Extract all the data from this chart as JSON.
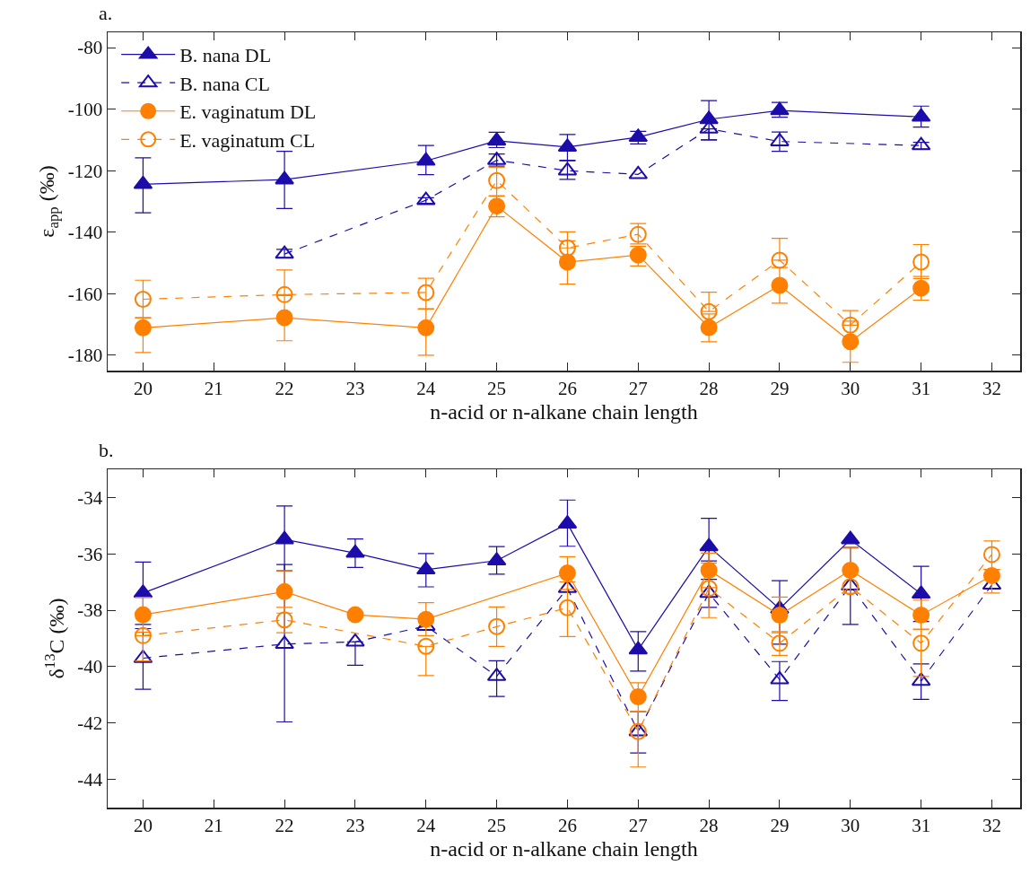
{
  "chart_data": [
    {
      "type": "line",
      "title": "a.",
      "xlabel": "n-acid or n-alkane chain length",
      "ylabel": "ε$_{app}$ (‰)",
      "xlim": [
        19.5,
        32.4
      ],
      "xticks": [
        20,
        21,
        22,
        23,
        24,
        25,
        26,
        27,
        28,
        29,
        30,
        31,
        32
      ],
      "ylim": [
        -185,
        -75
      ],
      "yticks": [
        -80,
        -100,
        -120,
        -140,
        -160,
        -180
      ],
      "grid": false,
      "legend": "top left",
      "series": [
        {
          "name": "B. nana DL",
          "color": "#1c0ca9",
          "marker": "triangle",
          "line_style": "solid",
          "x": [
            20,
            22,
            24,
            25,
            26,
            27,
            28,
            29,
            31
          ],
          "values": [
            -124.4,
            -122.9,
            -116.8,
            -110.3,
            -112.3,
            -109.1,
            -103.3,
            -100.4,
            -102.5
          ],
          "errors": [
            [
              -133.7,
              -115.8
            ],
            [
              -132.3,
              -113.7
            ],
            [
              -121.3,
              -111.8
            ],
            [
              -112.5,
              -107.5
            ],
            [
              -116.6,
              -108.2
            ],
            [
              -111.3,
              -107.2
            ],
            [
              -110,
              -97.2
            ],
            [
              -102.6,
              -97.8
            ],
            [
              -105.8,
              -99
            ]
          ]
        },
        {
          "name": "B. nana CL",
          "color": "#1c0ca9",
          "marker": "triangle",
          "line_style": "dashed",
          "x": [
            22,
            24,
            25,
            26,
            27,
            28,
            29,
            31
          ],
          "values": [
            -147.1,
            -129.6,
            -116.6,
            -120,
            -121.2,
            -106.4,
            -110.5,
            -111.8
          ],
          "errors": [
            [
              -148.3,
              -145.6
            ],
            [
              -130.6,
              -128.8
            ],
            [
              -118.5,
              -114.6
            ],
            [
              -122.8,
              -116.8
            ],
            null,
            [
              -110,
              -106.4
            ],
            [
              -113.7,
              -107.4
            ],
            [
              -113,
              -110.8
            ]
          ]
        },
        {
          "name": "E. vaginatum DL",
          "color": "#ff8000",
          "marker": "circle",
          "line_style": "solid",
          "x": [
            20,
            22,
            24,
            25,
            26,
            27,
            28,
            29,
            30,
            31
          ],
          "values": [
            -171.1,
            -167.8,
            -171.1,
            -131.5,
            -149.7,
            -147.4,
            -171,
            -157.3,
            -175.6,
            -158.2
          ],
          "errors": [
            [
              -179.1,
              -167.8
            ],
            [
              -175.3,
              -160.6
            ],
            [
              -180,
              -164.9
            ],
            [
              -135,
              -128.1
            ],
            [
              -156.9,
              -142.8
            ],
            [
              -151,
              -144.6
            ],
            [
              -175.6,
              -166.6
            ],
            [
              -163.1,
              -151.5
            ],
            [
              -182.3,
              -168.9
            ],
            [
              -162.1,
              -154.4
            ]
          ]
        },
        {
          "name": "E. vaginatum CL",
          "color": "#ff8000",
          "marker": "circle",
          "line_style": "dashed",
          "x": [
            20,
            22,
            24,
            25,
            26,
            27,
            28,
            29,
            30,
            31
          ],
          "values": [
            -161.8,
            -160.3,
            -159.6,
            -123.2,
            -145.1,
            -140.7,
            -165.8,
            -149.1,
            -170.2,
            -149.7
          ],
          "errors": [
            [
              -167.8,
              -155.6
            ],
            [
              -160.3,
              -152.3
            ],
            [
              -165,
              -155
            ],
            [
              -128.3,
              -118.9
            ],
            [
              -145.1,
              -139.9
            ],
            [
              -143.8,
              -137.2
            ],
            [
              -165.8,
              -159.5
            ],
            [
              -149.1,
              -142
            ],
            [
              -170.2,
              -165.5
            ],
            [
              -155.1,
              -144
            ]
          ]
        }
      ]
    },
    {
      "type": "line",
      "title": "b.",
      "xlabel": "n-acid or n-alkane chain length",
      "ylabel": "δ$^{13}$C (‰)",
      "xlim": [
        19.5,
        32.4
      ],
      "xticks": [
        20,
        21,
        22,
        23,
        24,
        25,
        26,
        27,
        28,
        29,
        30,
        31,
        32
      ],
      "ylim": [
        -45,
        -33
      ],
      "yticks": [
        -34,
        -36,
        -38,
        -40,
        -42,
        -44
      ],
      "grid": false,
      "legend": false,
      "series": [
        {
          "color": "#1c0ca9",
          "marker": "triangle",
          "line_style": "solid",
          "x": [
            20,
            22,
            23,
            24,
            25,
            26,
            27,
            28,
            29,
            30,
            31
          ],
          "values": [
            -37.39,
            -35.49,
            -35.97,
            -36.56,
            -36.24,
            -34.93,
            -39.4,
            -35.74,
            -37.95,
            -35.49,
            -37.42
          ],
          "errors": [
            [
              -38.5,
              -36.29
            ],
            [
              -36.6,
              -34.3
            ],
            [
              -36.48,
              -35.47
            ],
            [
              -37.17,
              -35.99
            ],
            [
              -36.72,
              -35.74
            ],
            [
              -35.73,
              -34.09
            ],
            [
              -40.16,
              -38.76
            ],
            [
              -36.25,
              -34.74
            ],
            [
              -39.2,
              -36.95
            ],
            null,
            [
              -38.4,
              -36.44
            ]
          ]
        },
        {
          "color": "#1c0ca9",
          "marker": "triangle",
          "line_style": "dashed",
          "x": [
            20,
            22,
            23,
            24,
            25,
            26,
            27,
            28,
            29,
            30,
            31,
            32
          ],
          "values": [
            -39.7,
            -39.2,
            -39.12,
            -38.56,
            -40.34,
            -37.22,
            -42.3,
            -37.39,
            -40.46,
            -37.13,
            -40.51,
            -37.1
          ],
          "errors": [
            [
              -40.8,
              -38.65
            ],
            [
              -41.96,
              -36.38
            ],
            [
              -39.95,
              -39.12
            ],
            null,
            [
              -41.06,
              -39.79
            ],
            null,
            [
              -43.06,
              -41.6
            ],
            [
              -37.9,
              -36.9
            ],
            [
              -41.2,
              -39.82
            ],
            [
              -38.5,
              -35.77
            ],
            [
              -41.16,
              -39.9
            ],
            null
          ]
        },
        {
          "color": "#ff8000",
          "marker": "circle",
          "line_style": "solid",
          "x": [
            20,
            22,
            23,
            24,
            26,
            27,
            28,
            29,
            30,
            31,
            32
          ],
          "values": [
            -38.16,
            -37.34,
            -38.16,
            -38.32,
            -36.68,
            -41.07,
            -36.58,
            -38.17,
            -36.58,
            -38.17,
            -36.77
          ],
          "errors": [
            [
              -38.78,
              -37.54
            ],
            [
              -38.1,
              -36.6
            ],
            null,
            [
              -38.9,
              -37.73
            ],
            [
              -37.26,
              -36.1
            ],
            [
              -41.6,
              -40.57
            ],
            [
              -37.2,
              -35.97
            ],
            [
              -38.8,
              -37.53
            ],
            [
              -37.4,
              -35.8
            ],
            [
              -38.69,
              -37.64
            ],
            [
              -37.39,
              -36.55
            ]
          ]
        },
        {
          "color": "#ff8000",
          "marker": "circle",
          "line_style": "dashed",
          "x": [
            20,
            22,
            24,
            25,
            26,
            27,
            28,
            29,
            30,
            31,
            32
          ],
          "values": [
            -38.9,
            -38.34,
            -39.28,
            -38.58,
            -37.91,
            -42.3,
            -37.22,
            -39.17,
            -37.16,
            -39.17,
            -36.02
          ],
          "errors": [
            [
              -39.8,
              -38.9
            ],
            [
              -38.8,
              -37.9
            ],
            [
              -40.32,
              -39.28
            ],
            [
              -39.28,
              -37.88
            ],
            [
              -38.93,
              -36.99
            ],
            [
              -43.56,
              -41.6
            ],
            [
              -38.26,
              -36.32
            ],
            [
              -39.6,
              -38.76
            ],
            null,
            [
              -40.35,
              -38.67
            ],
            [
              -36.55,
              -35.54
            ]
          ]
        }
      ]
    }
  ]
}
